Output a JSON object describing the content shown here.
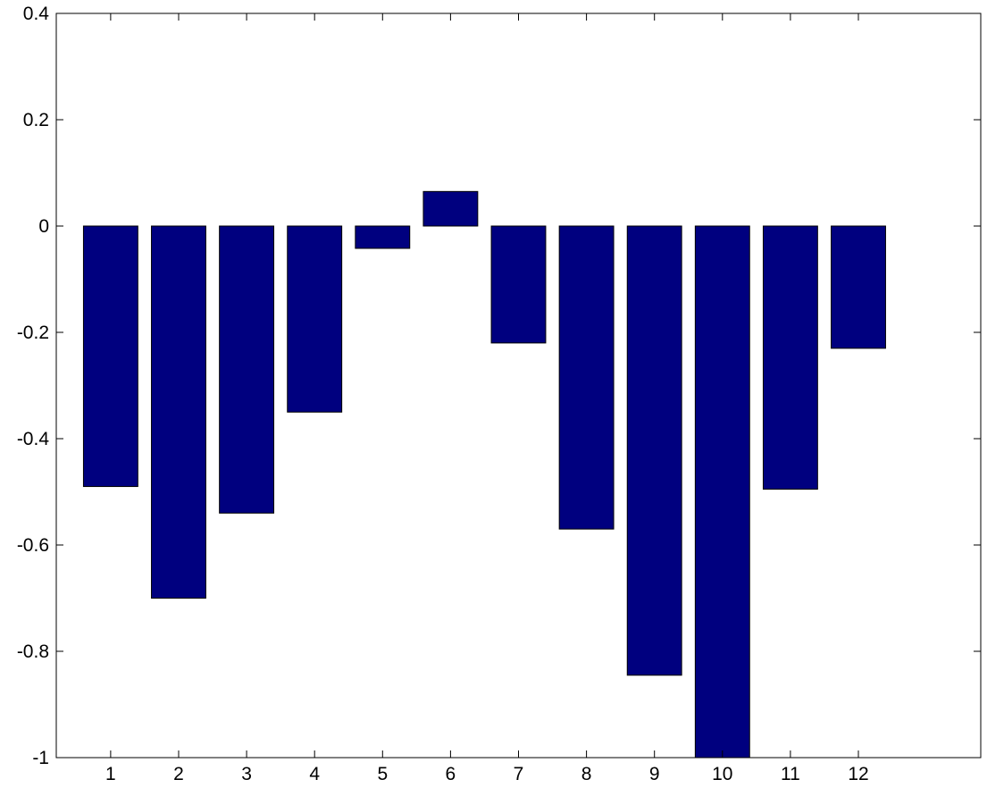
{
  "chart_data": {
    "type": "bar",
    "title": "",
    "xlabel": "",
    "ylabel": "",
    "categories": [
      "1",
      "2",
      "3",
      "4",
      "5",
      "6",
      "7",
      "8",
      "9",
      "10",
      "11",
      "12"
    ],
    "values": [
      -0.49,
      -0.7,
      -0.54,
      -0.35,
      -0.042,
      0.065,
      -0.22,
      -0.57,
      -0.845,
      -1.0,
      -0.495,
      -0.23
    ],
    "xlim": [
      0.2,
      13.8
    ],
    "ylim": [
      -1,
      0.4
    ],
    "yticks": [
      "-1",
      "-0.8",
      "-0.6",
      "-0.4",
      "-0.2",
      "0",
      "0.2",
      "0.4"
    ],
    "grid": false,
    "bar_color": "#00007F",
    "edge_color": "#000000"
  }
}
